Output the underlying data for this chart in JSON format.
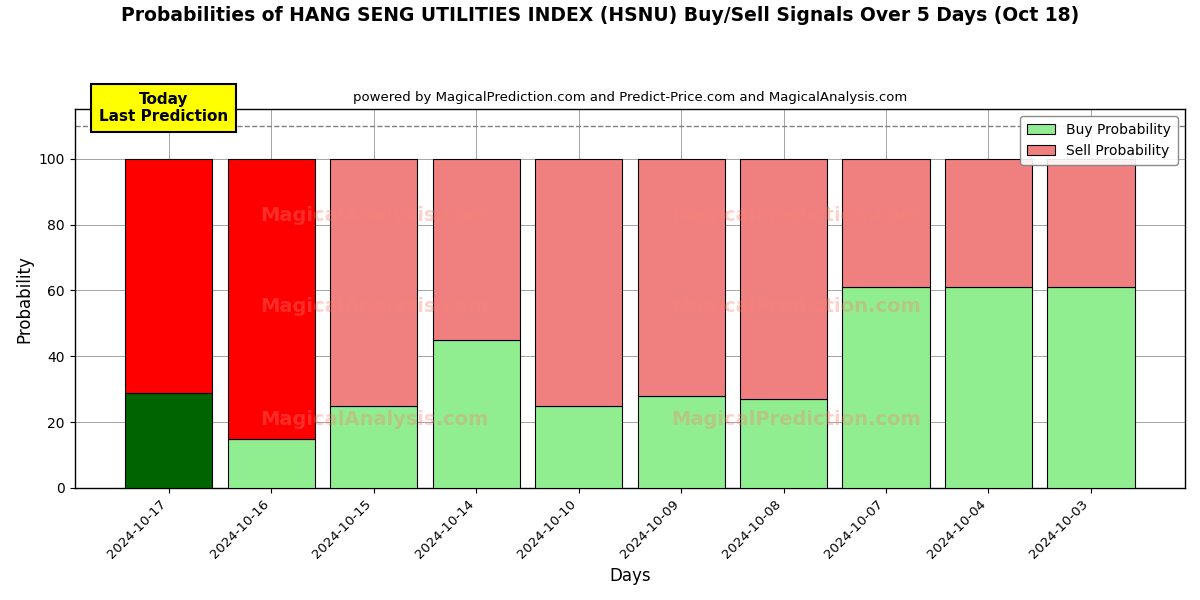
{
  "title": "Probabilities of HANG SENG UTILITIES INDEX (HSNU) Buy/Sell Signals Over 5 Days (Oct 18)",
  "subtitle": "powered by MagicalPrediction.com and Predict-Price.com and MagicalAnalysis.com",
  "xlabel": "Days",
  "ylabel": "Probability",
  "categories": [
    "2024-10-17",
    "2024-10-16",
    "2024-10-15",
    "2024-10-14",
    "2024-10-10",
    "2024-10-09",
    "2024-10-08",
    "2024-10-07",
    "2024-10-04",
    "2024-10-03"
  ],
  "buy_values": [
    29,
    15,
    25,
    45,
    25,
    28,
    27,
    61,
    61,
    61
  ],
  "sell_values": [
    71,
    85,
    75,
    55,
    75,
    72,
    73,
    39,
    39,
    39
  ],
  "buy_colors": [
    "#006400",
    "#90EE90",
    "#90EE90",
    "#90EE90",
    "#90EE90",
    "#90EE90",
    "#90EE90",
    "#90EE90",
    "#90EE90",
    "#90EE90"
  ],
  "sell_colors": [
    "#FF0000",
    "#FF0000",
    "#F08080",
    "#F08080",
    "#F08080",
    "#F08080",
    "#F08080",
    "#F08080",
    "#F08080",
    "#F08080"
  ],
  "today_label": "Today\nLast Prediction",
  "today_bg": "#FFFF00",
  "today_border": "#000000",
  "ylim": [
    0,
    115
  ],
  "yticks": [
    0,
    20,
    40,
    60,
    80,
    100
  ],
  "dashed_line_y": 110,
  "legend_buy_color": "#90EE90",
  "legend_sell_color": "#F08080",
  "watermark_color": "#FA8072",
  "watermark_alpha": 0.35,
  "bar_width": 0.85,
  "figsize": [
    12,
    6
  ],
  "dpi": 100,
  "bg_color": "#FFFFFF"
}
